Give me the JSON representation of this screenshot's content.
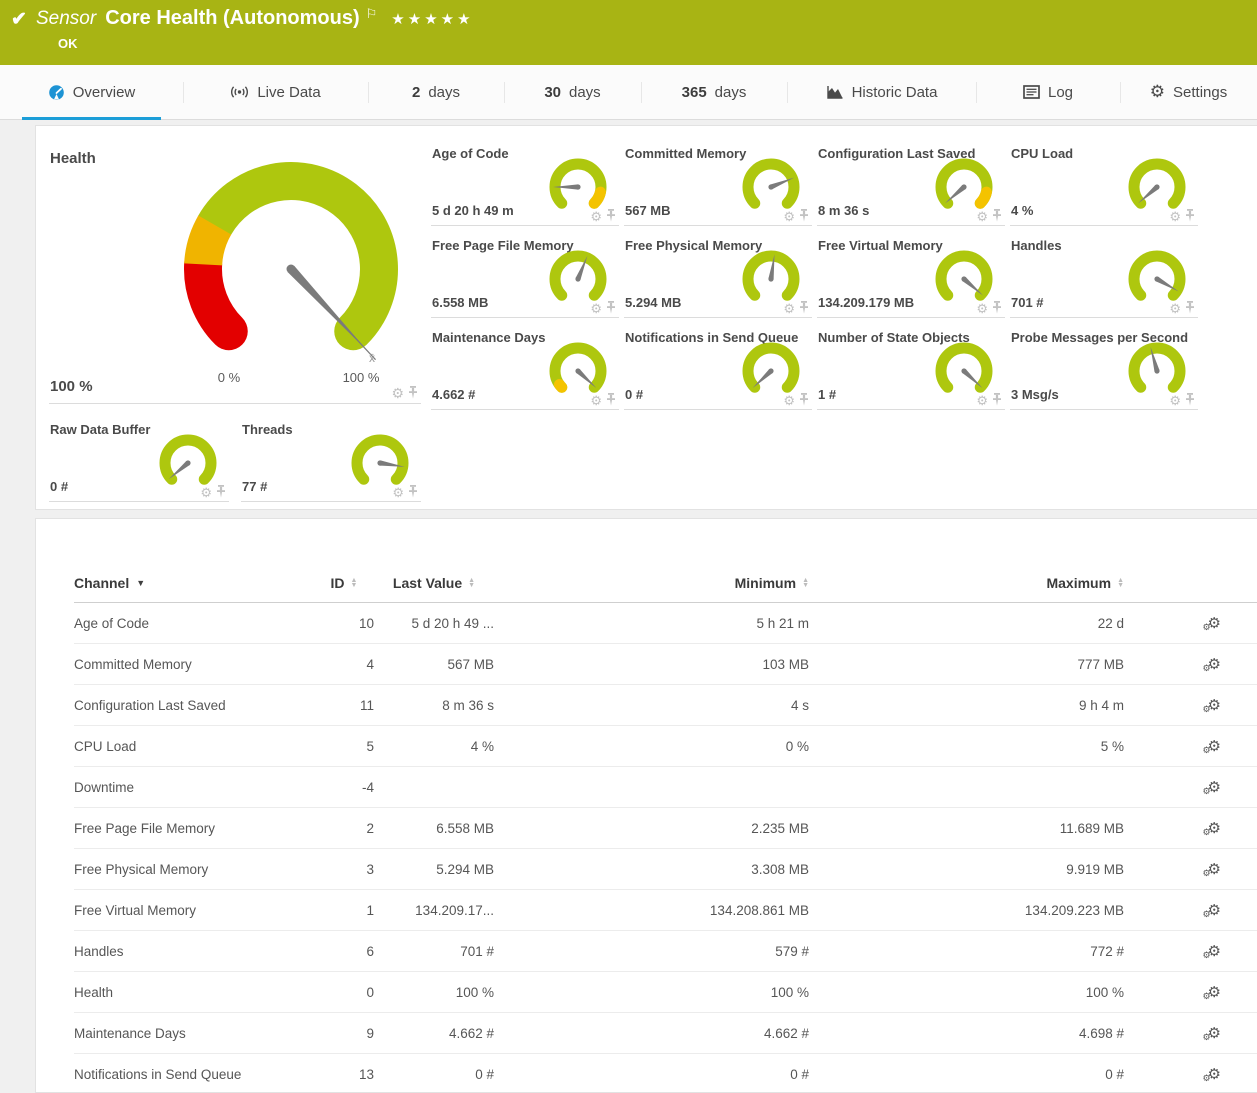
{
  "icons": {
    "check": "✔",
    "flag": "⚐",
    "gear": "⚙",
    "avg": "x̄"
  },
  "colors": {
    "header_bg": "#a8b414",
    "gauge_green": "#aec70e",
    "gauge_yellow": "#f4c300",
    "gauge_red": "#e30000",
    "needle": "#7b7b7b",
    "tab_accent": "#1c9ed8"
  },
  "header": {
    "kind_label": "Sensor",
    "title": "Core Health (Autonomous)",
    "priority_stars": "★★★★★",
    "status_text": "OK"
  },
  "tabs": [
    {
      "id": "overview",
      "icon": "gauge-icon",
      "label": "Overview",
      "active": true
    },
    {
      "id": "live-data",
      "icon": "live-icon",
      "label": "Live Data"
    },
    {
      "id": "2-days",
      "prefix": "2",
      "label": "days"
    },
    {
      "id": "30-days",
      "prefix": "30",
      "label": "days"
    },
    {
      "id": "365-days",
      "prefix": "365",
      "label": "days"
    },
    {
      "id": "historic-data",
      "icon": "historic-icon",
      "label": "Historic Data"
    },
    {
      "id": "log",
      "icon": "log-icon",
      "label": "Log"
    },
    {
      "id": "settings",
      "icon": "gear-icon",
      "label": "Settings"
    }
  ],
  "health_gauge": {
    "title": "Health",
    "value": "100 %",
    "scale_min_label": "0 %",
    "scale_max_label": "100 %",
    "average_marker": "x̄",
    "needle_deg": 137,
    "segments": [
      {
        "color": "#e30000",
        "from": -135,
        "to": -87
      },
      {
        "color": "#f0b400",
        "from": -87,
        "to": -60
      },
      {
        "color": "#aec70e",
        "from": -60,
        "to": 135
      }
    ]
  },
  "mini_gauges": [
    {
      "label": "Age of Code",
      "value": "5 d 20 h 49 m",
      "needle_deg": -90,
      "warn": [
        103,
        135
      ]
    },
    {
      "label": "Committed Memory",
      "value": "567 MB",
      "needle_deg": 68
    },
    {
      "label": "Configuration Last Saved",
      "value": "8 m 36 s",
      "needle_deg": -131,
      "warn": [
        103,
        135
      ]
    },
    {
      "label": "CPU Load",
      "value": "4 %",
      "needle_deg": -131
    },
    {
      "label": "Free Page File Memory",
      "value": "6.558 MB",
      "needle_deg": 22
    },
    {
      "label": "Free Physical Memory",
      "value": "5.294 MB",
      "needle_deg": 8
    },
    {
      "label": "Free Virtual Memory",
      "value": "134.209.179 MB",
      "needle_deg": 131
    },
    {
      "label": "Handles",
      "value": "701 #",
      "needle_deg": 120
    },
    {
      "label": "Maintenance Days",
      "value": "4.662 #",
      "needle_deg": 133,
      "warn": [
        -135,
        -126
      ]
    },
    {
      "label": "Notifications in Send Queue",
      "value": "0 #",
      "needle_deg": -133
    },
    {
      "label": "Number of State Objects",
      "value": "1 #",
      "needle_deg": 133
    },
    {
      "label": "Probe Messages per Second",
      "value": "3 Msg/s",
      "needle_deg": -15
    },
    {
      "label": "Raw Data Buffer",
      "value": "0 #",
      "needle_deg": -130
    },
    {
      "label": "Threads",
      "value": "77 #",
      "needle_deg": 99
    }
  ],
  "channel_table": {
    "columns": [
      {
        "label": "Channel",
        "sort": "desc"
      },
      {
        "label": "ID",
        "sort": "both"
      },
      {
        "label": "Last Value",
        "sort": "both"
      },
      {
        "label": "Minimum",
        "sort": "both"
      },
      {
        "label": "Maximum",
        "sort": "both"
      }
    ],
    "rows": [
      {
        "channel": "Age of Code",
        "id": "10",
        "last": "5 d 20 h 49 ...",
        "min": "5 h 21 m",
        "max": "22 d"
      },
      {
        "channel": "Committed Memory",
        "id": "4",
        "last": "567 MB",
        "min": "103 MB",
        "max": "777 MB"
      },
      {
        "channel": "Configuration Last Saved",
        "id": "11",
        "last": "8 m 36 s",
        "min": "4 s",
        "max": "9 h 4 m"
      },
      {
        "channel": "CPU Load",
        "id": "5",
        "last": "4 %",
        "min": "0 %",
        "max": "5 %"
      },
      {
        "channel": "Downtime",
        "id": "-4",
        "last": "",
        "min": "",
        "max": ""
      },
      {
        "channel": "Free Page File Memory",
        "id": "2",
        "last": "6.558 MB",
        "min": "2.235 MB",
        "max": "11.689 MB"
      },
      {
        "channel": "Free Physical Memory",
        "id": "3",
        "last": "5.294 MB",
        "min": "3.308 MB",
        "max": "9.919 MB"
      },
      {
        "channel": "Free Virtual Memory",
        "id": "1",
        "last": "134.209.17...",
        "min": "134.208.861 MB",
        "max": "134.209.223 MB"
      },
      {
        "channel": "Handles",
        "id": "6",
        "last": "701 #",
        "min": "579 #",
        "max": "772 #"
      },
      {
        "channel": "Health",
        "id": "0",
        "last": "100 %",
        "min": "100 %",
        "max": "100 %"
      },
      {
        "channel": "Maintenance Days",
        "id": "9",
        "last": "4.662 #",
        "min": "4.662 #",
        "max": "4.698 #"
      },
      {
        "channel": "Notifications in Send Queue",
        "id": "13",
        "last": "0 #",
        "min": "0 #",
        "max": "0 #"
      }
    ]
  }
}
